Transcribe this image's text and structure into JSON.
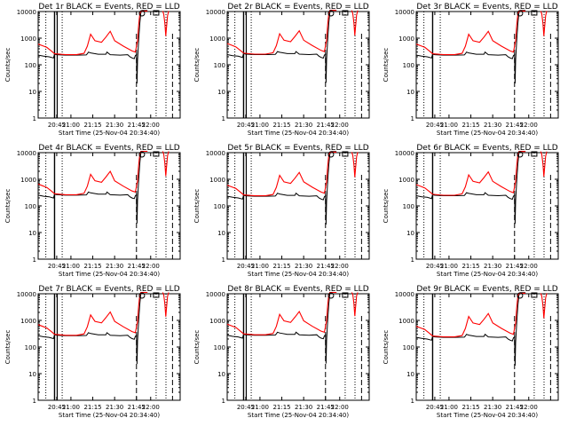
{
  "chart_data": {
    "type": "line",
    "panel_title_suffix": "BLACK = Events, RED = LLD",
    "xlabel": "Start Time (25-Nov-04 20:34:40)",
    "ylabel": "Counts/sec",
    "x_tick_labels": [
      "20:45",
      "21:00",
      "21:15",
      "21:30",
      "21:45",
      "22:00"
    ],
    "x_range_min": [
      0,
      100
    ],
    "y_scale": "log",
    "ylim": [
      1,
      10000
    ],
    "y_tick_labels": [
      "1",
      "10",
      "100",
      "1000",
      "10000"
    ],
    "colors": {
      "events": "#000000",
      "lld": "#ff0000"
    },
    "markers": {
      "dotted": [
        7,
        22,
        108,
        117
      ],
      "dashed": [
        90,
        123
      ],
      "solid": [
        15
      ]
    },
    "series": {
      "events": [
        [
          0,
          230
        ],
        [
          5,
          210
        ],
        [
          10,
          200
        ],
        [
          14,
          180
        ],
        [
          15,
          250
        ],
        [
          17,
          240
        ],
        [
          25,
          230
        ],
        [
          35,
          230
        ],
        [
          44,
          235
        ],
        [
          45,
          260
        ],
        [
          46,
          300
        ],
        [
          48,
          280
        ],
        [
          55,
          250
        ],
        [
          62,
          250
        ],
        [
          63,
          300
        ],
        [
          66,
          240
        ],
        [
          75,
          230
        ],
        [
          82,
          240
        ],
        [
          84,
          200
        ],
        [
          86,
          180
        ],
        [
          88,
          170
        ],
        [
          89,
          220
        ],
        [
          90,
          240
        ],
        [
          90.5,
          20
        ],
        [
          91,
          150
        ],
        [
          92,
          800
        ],
        [
          93,
          3500
        ],
        [
          94,
          9000
        ],
        [
          95,
          11000
        ],
        [
          100,
          11000
        ]
      ],
      "lld": [
        [
          0,
          600
        ],
        [
          4,
          520
        ],
        [
          8,
          450
        ],
        [
          12,
          330
        ],
        [
          15,
          260
        ],
        [
          25,
          240
        ],
        [
          35,
          240
        ],
        [
          42,
          270
        ],
        [
          45,
          500
        ],
        [
          48,
          1400
        ],
        [
          52,
          800
        ],
        [
          58,
          700
        ],
        [
          62,
          1100
        ],
        [
          66,
          1800
        ],
        [
          70,
          800
        ],
        [
          78,
          500
        ],
        [
          86,
          330
        ],
        [
          89,
          300
        ],
        [
          91,
          800
        ],
        [
          92,
          3000
        ],
        [
          93,
          8000
        ],
        [
          94,
          10500
        ],
        [
          100,
          10500
        ]
      ],
      "tail": [
        [
          114,
          10500
        ],
        [
          115,
          8000
        ],
        [
          116,
          3500
        ],
        [
          116.8,
          1200
        ],
        [
          117.5,
          2500
        ],
        [
          118.5,
          7000
        ],
        [
          119.5,
          10500
        ]
      ],
      "circle": [
        95,
        10000
      ],
      "square": [
        108,
        10500
      ]
    },
    "panels": [
      {
        "label": "Det 1r",
        "scale": 1.0,
        "solid_doubled": true
      },
      {
        "label": "Det 2r",
        "scale": 1.05,
        "solid_doubled": true
      },
      {
        "label": "Det 3r",
        "scale": 1.0,
        "solid_doubled": false
      },
      {
        "label": "Det 4r",
        "scale": 1.1,
        "solid_doubled": false
      },
      {
        "label": "Det 5r",
        "scale": 1.0,
        "solid_doubled": true
      },
      {
        "label": "Det 6r",
        "scale": 1.05,
        "solid_doubled": false
      },
      {
        "label": "Det 7r",
        "scale": 1.15,
        "solid_doubled": true
      },
      {
        "label": "Det 8r",
        "scale": 1.2,
        "solid_doubled": true
      },
      {
        "label": "Det 9r",
        "scale": 1.0,
        "solid_doubled": false
      }
    ]
  }
}
